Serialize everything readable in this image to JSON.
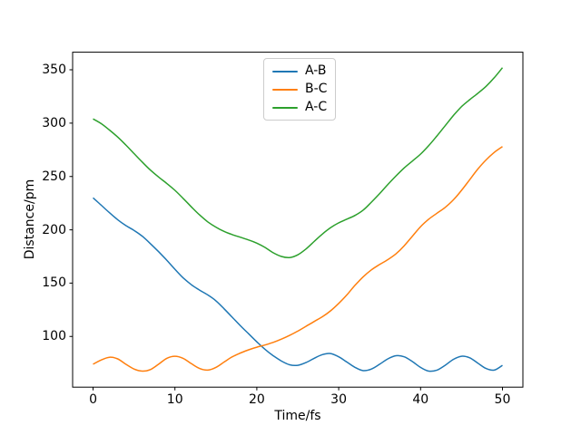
{
  "figure": {
    "background": "#ffffff",
    "spine_color": "#000000",
    "text_color": "#000000"
  },
  "legend": {
    "position": "upper center",
    "border_color": "#cccccc",
    "entries": [
      "A-B",
      "B-C",
      "A-C"
    ]
  },
  "chart_data": {
    "type": "line",
    "title": "",
    "xlabel": "Time/fs",
    "ylabel": "Distance/pm",
    "xlim": [
      -2.5,
      52.5
    ],
    "ylim": [
      52.5,
      366.5
    ],
    "x_ticks": [
      0,
      10,
      20,
      30,
      40,
      50
    ],
    "y_ticks": [
      100,
      150,
      200,
      250,
      300,
      350
    ],
    "grid": false,
    "legend_position": "upper center",
    "line_width": 1.5,
    "x": [
      0,
      1,
      2,
      3,
      4,
      5,
      6,
      7,
      8,
      9,
      10,
      11,
      12,
      13,
      14,
      15,
      16,
      17,
      18,
      19,
      20,
      21,
      22,
      23,
      24,
      25,
      26,
      27,
      28,
      29,
      30,
      31,
      32,
      33,
      34,
      35,
      36,
      37,
      38,
      39,
      40,
      41,
      42,
      43,
      44,
      45,
      46,
      47,
      48,
      49,
      50
    ],
    "series": [
      {
        "name": "A-B",
        "color": "#1f77b4",
        "values": [
          230,
          223,
          216,
          209.5,
          204,
          199.5,
          194,
          187,
          179.5,
          171.5,
          163,
          155,
          148.5,
          143.5,
          139,
          133.5,
          126,
          118,
          110,
          102.5,
          95,
          88,
          82,
          77,
          73.5,
          73,
          75.5,
          79.5,
          83,
          84,
          81,
          76,
          71,
          68,
          69.5,
          74,
          79,
          82,
          81,
          76.5,
          71,
          67.5,
          68.5,
          73,
          78.5,
          81.5,
          80,
          75,
          70,
          68.5,
          73
        ]
      },
      {
        "name": "B-C",
        "color": "#ff7f0e",
        "values": [
          74,
          78,
          80.5,
          79,
          74,
          69.5,
          67.5,
          69,
          74,
          79.5,
          81.5,
          79.5,
          74.5,
          70,
          68.5,
          71,
          76,
          81,
          84.5,
          87.5,
          90,
          92,
          94.5,
          97.5,
          101,
          105,
          109.5,
          114,
          118.5,
          124,
          131,
          139,
          148,
          156,
          162.5,
          167.5,
          172,
          177.5,
          185,
          194,
          203,
          210,
          215.5,
          221,
          228,
          237,
          247,
          257,
          265.5,
          272.5,
          278
        ]
      },
      {
        "name": "A-C",
        "color": "#2ca02c",
        "values": [
          304,
          299.5,
          293.5,
          287,
          279.5,
          271.5,
          263.5,
          256,
          249.5,
          243.5,
          237,
          229.5,
          221.5,
          214,
          207.5,
          202.5,
          198.5,
          195.5,
          193,
          190.5,
          187.5,
          183.5,
          178.5,
          175,
          174,
          176.5,
          182,
          189,
          196,
          202,
          206.5,
          210,
          213.5,
          218.5,
          226,
          234,
          242.5,
          250.5,
          258,
          264.5,
          271,
          279,
          288,
          297.5,
          307,
          315.5,
          322,
          328,
          334.5,
          342.5,
          352
        ]
      }
    ]
  }
}
